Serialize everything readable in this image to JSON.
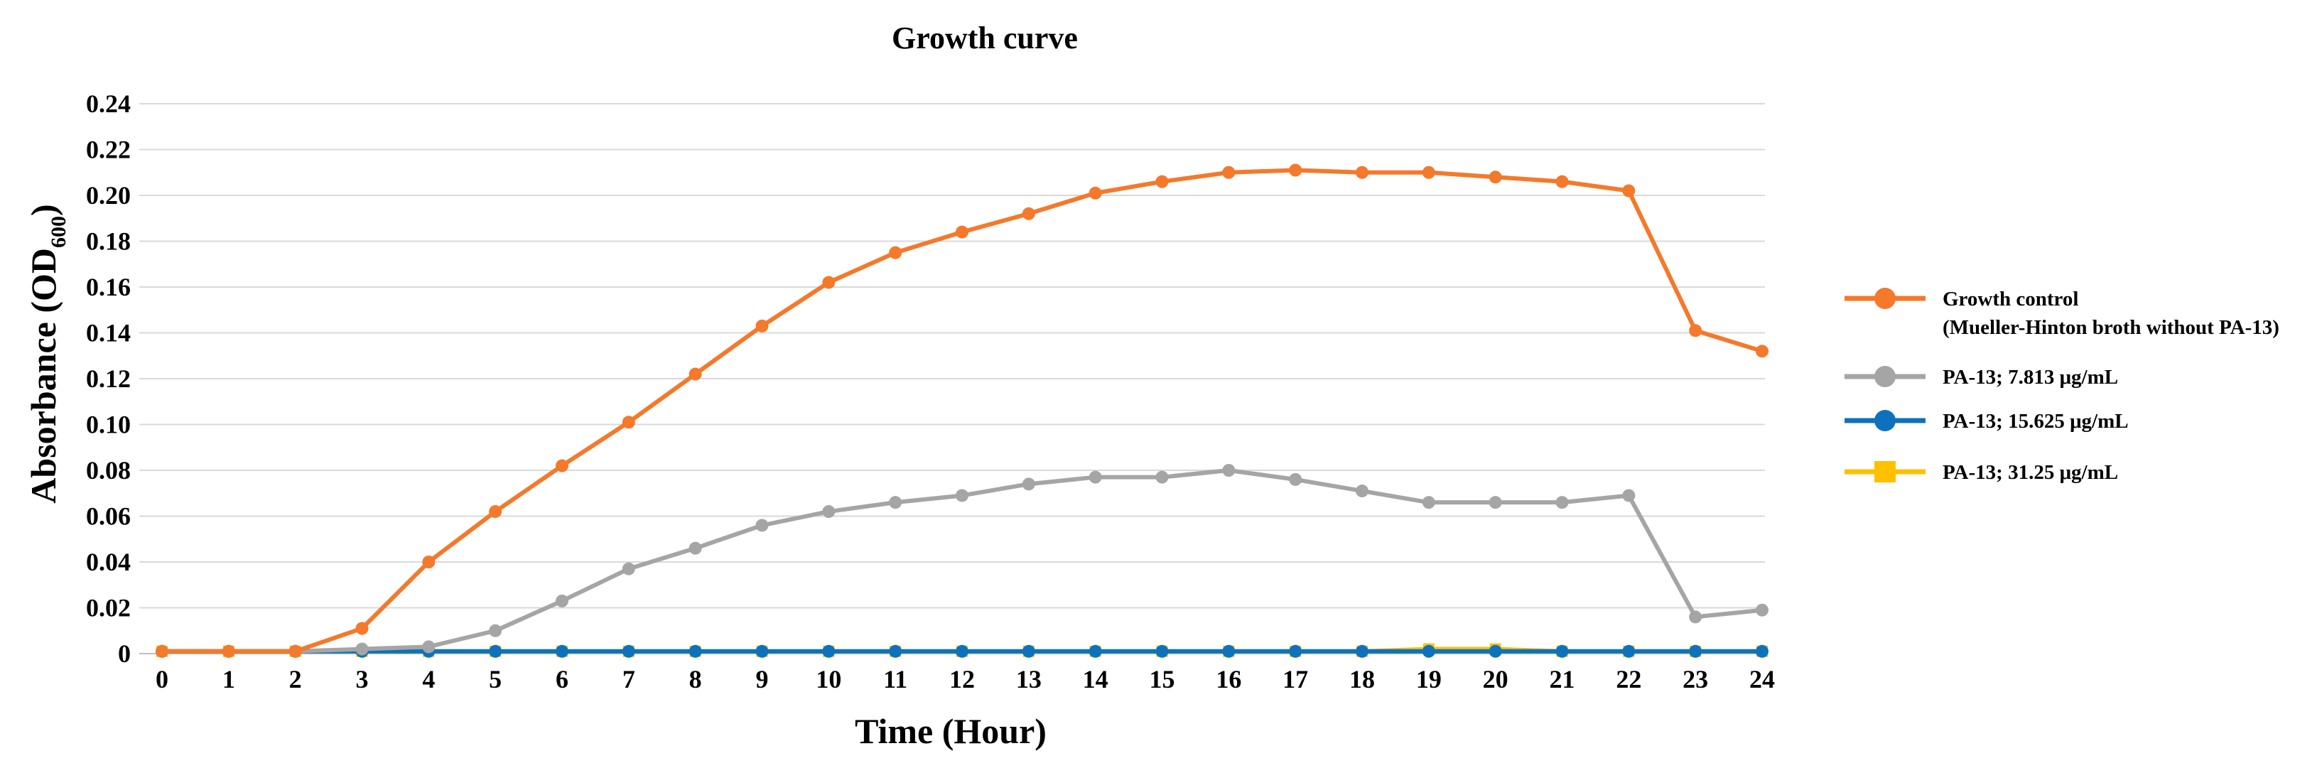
{
  "chart_data": {
    "type": "line",
    "title": "Growth curve",
    "xlabel": "Time (Hour)",
    "ylabel": "Absorbance (OD",
    "ylabel_subscript": "600",
    "ylabel_close": ")",
    "ylim": [
      0,
      0.24
    ],
    "grid": true,
    "legend_position": "right",
    "x": [
      0,
      1,
      2,
      3,
      4,
      5,
      6,
      7,
      8,
      9,
      10,
      11,
      12,
      13,
      14,
      15,
      16,
      17,
      18,
      19,
      20,
      21,
      22,
      23,
      24
    ],
    "x_tick_labels": [
      "0",
      "1",
      "2",
      "3",
      "4",
      "5",
      "6",
      "7",
      "8",
      "9",
      "10",
      "11",
      "12",
      "13",
      "14",
      "15",
      "16",
      "17",
      "18",
      "19",
      "20",
      "21",
      "22",
      "23",
      "24"
    ],
    "y_ticks": [
      0,
      0.02,
      0.04,
      0.06,
      0.08,
      0.1,
      0.12,
      0.14,
      0.16,
      0.18,
      0.2,
      0.22,
      0.24
    ],
    "y_tick_labels": [
      "0",
      "0.02",
      "0.04",
      "0.06",
      "0.08",
      "0.10",
      "0.12",
      "0.14",
      "0.16",
      "0.18",
      "0.20",
      "0.22",
      "0.24"
    ],
    "series": [
      {
        "name": "Growth control",
        "name_line2": "(Mueller-Hinton broth without PA-13)",
        "color": "#f4792b",
        "marker": "circle",
        "values": [
          0.001,
          0.001,
          0.001,
          0.011,
          0.04,
          0.062,
          0.082,
          0.101,
          0.122,
          0.143,
          0.162,
          0.175,
          0.184,
          0.192,
          0.201,
          0.206,
          0.21,
          0.211,
          0.21,
          0.21,
          0.208,
          0.206,
          0.202,
          0.141,
          0.132
        ]
      },
      {
        "name": "PA-13; 7.813 μg/mL",
        "name_line2": "",
        "color": "#a5a5a5",
        "marker": "circle",
        "values": [
          0.001,
          0.001,
          0.001,
          0.002,
          0.003,
          0.01,
          0.023,
          0.037,
          0.046,
          0.056,
          0.062,
          0.066,
          0.069,
          0.074,
          0.077,
          0.077,
          0.08,
          0.076,
          0.071,
          0.066,
          0.066,
          0.066,
          0.069,
          0.016,
          0.019
        ]
      },
      {
        "name": "PA-13; 15.625 μg/mL",
        "name_line2": "",
        "color": "#0d72bd",
        "marker": "circle",
        "values": [
          0.001,
          0.001,
          0.001,
          0.001,
          0.001,
          0.001,
          0.001,
          0.001,
          0.001,
          0.001,
          0.001,
          0.001,
          0.001,
          0.001,
          0.001,
          0.001,
          0.001,
          0.001,
          0.001,
          0.001,
          0.001,
          0.001,
          0.001,
          0.001,
          0.001
        ]
      },
      {
        "name": "PA-13; 31.25 μg/mL",
        "name_line2": "",
        "color": "#ffc000",
        "marker": "square",
        "values": [
          0.001,
          0.001,
          0.001,
          0.001,
          0.001,
          0.001,
          0.001,
          0.001,
          0.001,
          0.001,
          0.001,
          0.001,
          0.001,
          0.001,
          0.001,
          0.001,
          0.001,
          0.001,
          0.001,
          0.002,
          0.002,
          0.001,
          0.001,
          0.001,
          0.001
        ]
      }
    ]
  }
}
